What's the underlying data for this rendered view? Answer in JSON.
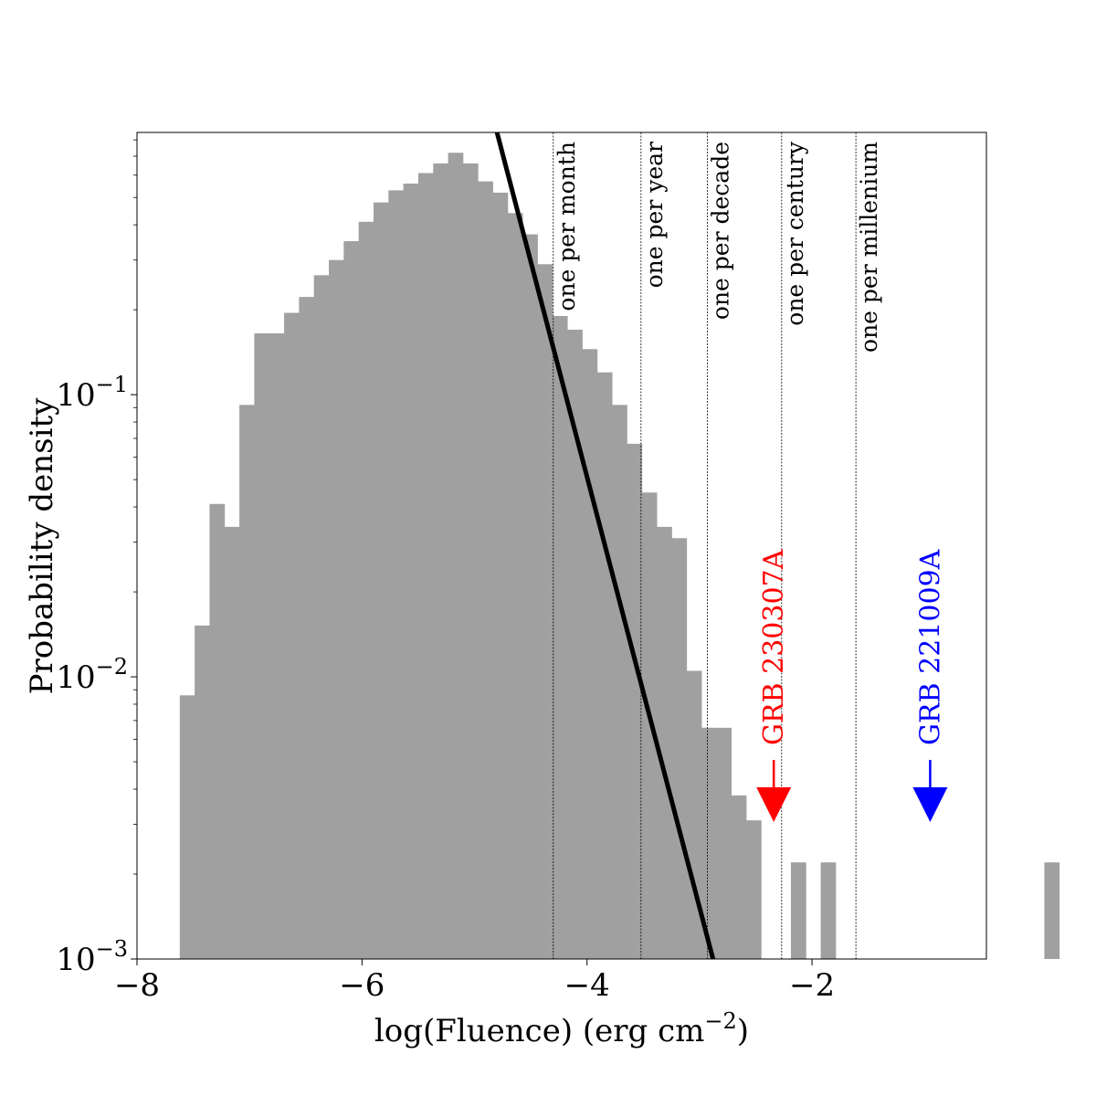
{
  "chart_data": {
    "type": "bar",
    "title": "",
    "xlabel": "log(Fluence) (erg cm",
    "xlabel_sup": "−2",
    "xlabel_close": ")",
    "ylabel": "Probability density",
    "xlim": [
      -8.0,
      -0.45
    ],
    "ylim": [
      0.001,
      0.85
    ],
    "yscale": "log",
    "grid": false,
    "x_ticks": [
      {
        "value": -8,
        "label": "−8"
      },
      {
        "value": -6,
        "label": "−6"
      },
      {
        "value": -4,
        "label": "−4"
      },
      {
        "value": -2,
        "label": "−2"
      }
    ],
    "y_ticks": [
      {
        "value": 0.1,
        "base": "10",
        "exp": "−1"
      },
      {
        "value": 0.01,
        "base": "10",
        "exp": "−2"
      },
      {
        "value": 0.001,
        "base": "10",
        "exp": "−3"
      }
    ],
    "hist_color": "#a0a0a0",
    "bin_start": -7.62,
    "bin_width": 0.1325,
    "values": [
      0.0086,
      0.0152,
      0.041,
      0.034,
      0.092,
      0.165,
      0.165,
      0.195,
      0.222,
      0.265,
      0.3,
      0.35,
      0.41,
      0.48,
      0.53,
      0.56,
      0.61,
      0.66,
      0.72,
      0.66,
      0.57,
      0.52,
      0.44,
      0.37,
      0.29,
      0.19,
      0.17,
      0.145,
      0.12,
      0.092,
      0.067,
      0.045,
      0.034,
      0.031,
      0.0105,
      0.0066,
      0.0066,
      0.0038,
      0.0031,
      0.0,
      0.0,
      0.0022,
      0.0,
      0.0022,
      0.0,
      0.0,
      0.0,
      0.0,
      0.0,
      0.0,
      0.0,
      0.0,
      0.0,
      0.0,
      0.0,
      0.0,
      0.0,
      0.0,
      0.0022
    ],
    "power_law_line": {
      "color": "#000000",
      "points": [
        [
          -4.8,
          0.85
        ],
        [
          -2.88,
          0.001
        ]
      ]
    },
    "rate_lines": [
      {
        "x": -4.3,
        "label": "one per month"
      },
      {
        "x": -3.52,
        "label": "one per year"
      },
      {
        "x": -2.93,
        "label": "one per decade"
      },
      {
        "x": -2.27,
        "label": "one per century"
      },
      {
        "x": -1.61,
        "label": "one per millenium"
      }
    ],
    "annotations": [
      {
        "x": -2.34,
        "label": "GRB 230307A",
        "color": "#ff0000"
      },
      {
        "x": -0.95,
        "label": "GRB 221009A",
        "color": "#0000ff"
      }
    ]
  }
}
